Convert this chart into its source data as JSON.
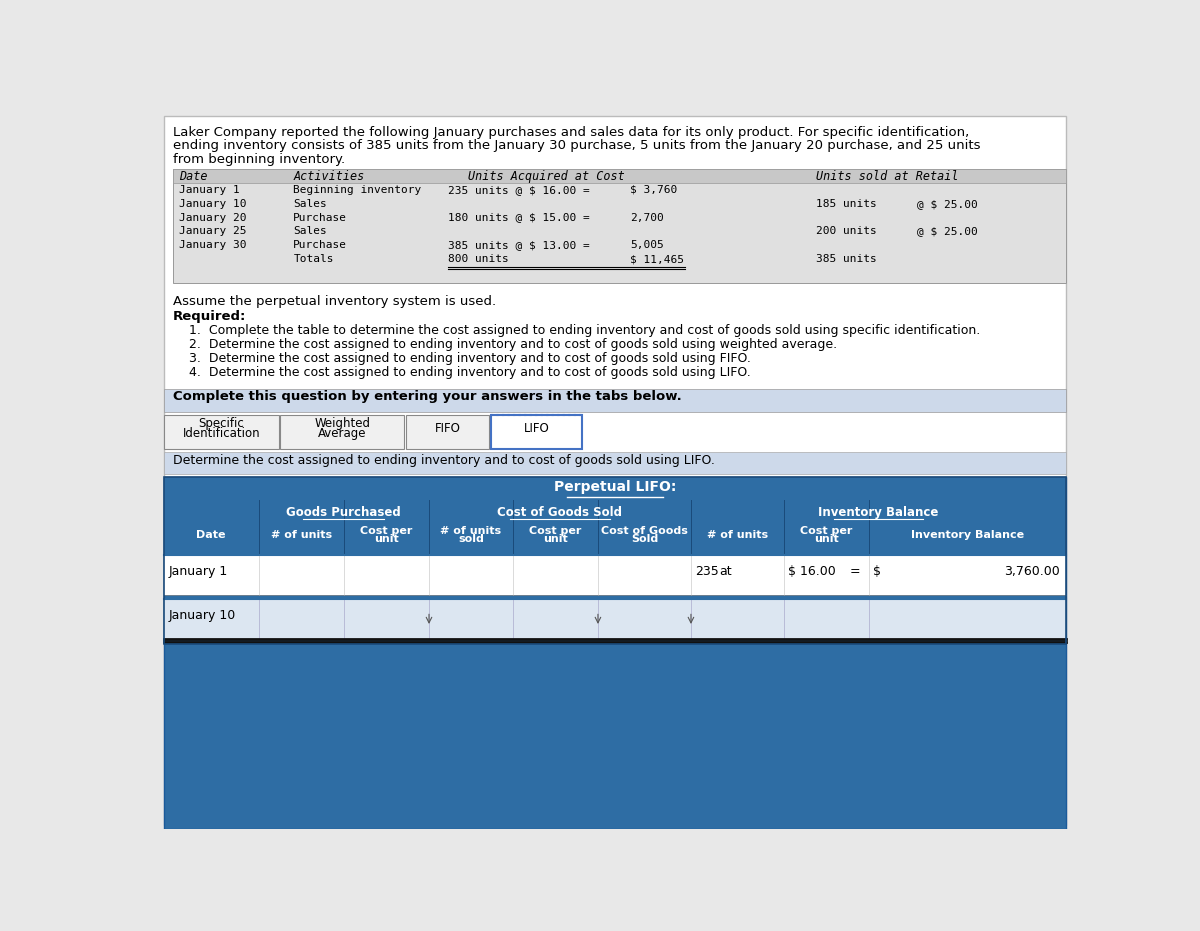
{
  "bg_color": "#e8e8e8",
  "white": "#ffffff",
  "blue_dark": "#2e6da4",
  "blue_medium": "#4a86c8",
  "blue_light": "#bdd7ee",
  "blue_lighter": "#dce6f1",
  "blue_tab": "#4472c4",
  "gray_light": "#d9d9d9",
  "gray_medium": "#c0c0c0",
  "gray_header": "#b8b8b8",
  "gray_section": "#d6d6d6",
  "black": "#000000",
  "intro_line1": "Laker Company reported the following January purchases and sales data for its only product. For specific identification,",
  "intro_line2": "ending inventory consists of 385 units from the January 30 purchase, 5 units from the January 20 purchase, and 25 units",
  "intro_line3": "from beginning inventory.",
  "assume_text": "Assume the perpetual inventory system is used.",
  "required_label": "Required:",
  "req1": "1.  Complete the table to determine the cost assigned to ending inventory and cost of goods sold using specific identification.",
  "req2": "2.  Determine the cost assigned to ending inventory and to cost of goods sold using weighted average.",
  "req3": "3.  Determine the cost assigned to ending inventory and to cost of goods sold using FIFO.",
  "req4": "4.  Determine the cost assigned to ending inventory and to cost of goods sold using LIFO.",
  "complete_text": "Complete this question by entering your answers in the tabs below.",
  "tab_labels": [
    "Specific\nIdentification",
    "Weighted\nAverage",
    "FIFO",
    "LIFO"
  ],
  "lifo_desc": "Determine the cost assigned to ending inventory and to cost of goods sold using LIFO.",
  "perpetual_title": "Perpetual LIFO:",
  "sec1_label": "Goods Purchased",
  "sec2_label": "Cost of Goods Sold",
  "sec3_label": "Inventory Balance",
  "col_labels": [
    "Date",
    "# of units",
    "Cost per\nunit",
    "# of units\nsold",
    "Cost per\nunit",
    "Cost of Goods\nSold",
    "# of units",
    "Cost per\nunit",
    "Inventory Balance"
  ],
  "jan1_inv": "235",
  "jan1_at": "at",
  "jan1_cost": "$ 16.00",
  "jan1_eq": "=",
  "jan1_dollar": "$",
  "jan1_balance": "3,760.00"
}
